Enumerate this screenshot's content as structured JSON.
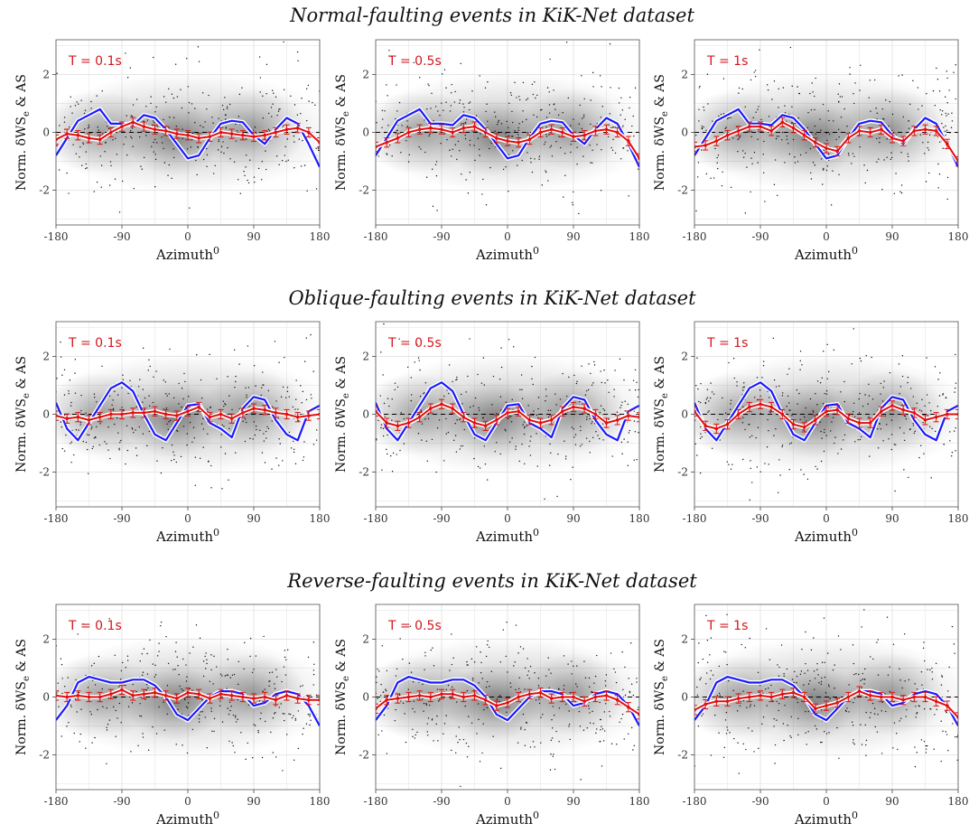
{
  "rows": [
    {
      "title": "Normal-faulting events in KiK-Net dataset"
    },
    {
      "title": "Oblique-faulting events in KiK-Net dataset"
    },
    {
      "title": "Reverse-faulting events in KiK-Net dataset"
    }
  ],
  "axes": {
    "xlabel": "Azimuth",
    "xlabel_sup": "0",
    "ylabel_main": "Norm. δWS",
    "ylabel_sub": "e",
    "ylabel_tail": " & AS",
    "xticks": [
      "-180",
      "-90",
      "0",
      "90",
      "180"
    ],
    "yticks": [
      "2",
      "0",
      "-2"
    ]
  },
  "colors": {
    "model_line": "#1a1aff",
    "binned_mean": "#e01010",
    "points": "#111111",
    "zero_line": "#000000"
  },
  "chart_data": [
    {
      "type": "line",
      "row": "Normal-faulting events in KiK-Net dataset",
      "period_label": "T = 0.1s",
      "xlim": [
        -180,
        180
      ],
      "ylim": [
        -3.2,
        3.2
      ],
      "grid": true,
      "x": [
        -180,
        -165,
        -150,
        -135,
        -120,
        -105,
        -90,
        -75,
        -60,
        -45,
        -30,
        -15,
        0,
        15,
        30,
        45,
        60,
        75,
        90,
        105,
        120,
        135,
        150,
        165,
        180
      ],
      "series": [
        {
          "values": [
            -0.8,
            -0.2,
            0.4,
            0.6,
            0.8,
            0.3,
            0.3,
            0.25,
            0.6,
            0.5,
            0.1,
            -0.4,
            -0.9,
            -0.8,
            -0.2,
            0.3,
            0.4,
            0.35,
            -0.1,
            -0.4,
            0.1,
            0.5,
            0.3,
            -0.4,
            -1.2
          ]
        },
        {
          "values": [
            -0.25,
            -0.05,
            -0.1,
            -0.2,
            -0.25,
            0.0,
            0.2,
            0.35,
            0.2,
            0.1,
            0.05,
            -0.05,
            -0.1,
            -0.2,
            -0.15,
            0.0,
            -0.05,
            -0.1,
            -0.15,
            -0.1,
            0.0,
            0.1,
            0.15,
            0.0,
            -0.35
          ]
        }
      ]
    },
    {
      "type": "line",
      "row": "Normal-faulting events in KiK-Net dataset",
      "period_label": "T = 0.5s",
      "xlim": [
        -180,
        180
      ],
      "ylim": [
        -3.2,
        3.2
      ],
      "grid": true,
      "x": [
        -180,
        -165,
        -150,
        -135,
        -120,
        -105,
        -90,
        -75,
        -60,
        -45,
        -30,
        -15,
        0,
        15,
        30,
        45,
        60,
        75,
        90,
        105,
        120,
        135,
        150,
        165,
        180
      ],
      "series": [
        {
          "values": [
            -0.8,
            -0.2,
            0.4,
            0.6,
            0.8,
            0.3,
            0.3,
            0.25,
            0.6,
            0.5,
            0.1,
            -0.4,
            -0.9,
            -0.8,
            -0.2,
            0.3,
            0.4,
            0.35,
            -0.1,
            -0.4,
            0.1,
            0.5,
            0.3,
            -0.4,
            -1.2
          ]
        },
        {
          "values": [
            -0.5,
            -0.35,
            -0.2,
            0.0,
            0.1,
            0.15,
            0.1,
            0.0,
            0.15,
            0.2,
            0.0,
            -0.2,
            -0.3,
            -0.35,
            -0.25,
            0.0,
            0.1,
            0.0,
            -0.15,
            -0.1,
            0.05,
            0.1,
            0.0,
            -0.3,
            -0.9
          ]
        }
      ]
    },
    {
      "type": "line",
      "row": "Normal-faulting events in KiK-Net dataset",
      "period_label": "T = 1s",
      "xlim": [
        -180,
        180
      ],
      "ylim": [
        -3.2,
        3.2
      ],
      "grid": true,
      "x": [
        -180,
        -165,
        -150,
        -135,
        -120,
        -105,
        -90,
        -75,
        -60,
        -45,
        -30,
        -15,
        0,
        15,
        30,
        45,
        60,
        75,
        90,
        105,
        120,
        135,
        150,
        165,
        180
      ],
      "series": [
        {
          "values": [
            -0.8,
            -0.2,
            0.4,
            0.6,
            0.8,
            0.3,
            0.3,
            0.25,
            0.6,
            0.5,
            0.1,
            -0.4,
            -0.9,
            -0.8,
            -0.2,
            0.3,
            0.4,
            0.35,
            -0.1,
            -0.4,
            0.1,
            0.5,
            0.3,
            -0.4,
            -1.2
          ]
        },
        {
          "values": [
            -0.5,
            -0.45,
            -0.3,
            -0.1,
            0.05,
            0.2,
            0.2,
            0.05,
            0.35,
            0.15,
            -0.1,
            -0.35,
            -0.55,
            -0.65,
            -0.2,
            0.05,
            0.0,
            0.1,
            -0.2,
            -0.3,
            0.05,
            0.1,
            0.05,
            -0.4,
            -1.0
          ]
        }
      ]
    },
    {
      "type": "line",
      "row": "Oblique-faulting events in KiK-Net dataset",
      "period_label": "T = 0.1s",
      "xlim": [
        -180,
        180
      ],
      "ylim": [
        -3.2,
        3.2
      ],
      "grid": true,
      "x": [
        -180,
        -165,
        -150,
        -135,
        -120,
        -105,
        -90,
        -75,
        -60,
        -45,
        -30,
        -15,
        0,
        15,
        30,
        45,
        60,
        75,
        90,
        105,
        120,
        135,
        150,
        165,
        180
      ],
      "series": [
        {
          "values": [
            0.4,
            -0.5,
            -0.9,
            -0.3,
            0.3,
            0.9,
            1.1,
            0.8,
            0.0,
            -0.7,
            -0.9,
            -0.3,
            0.3,
            0.35,
            -0.3,
            -0.5,
            -0.8,
            0.2,
            0.6,
            0.5,
            -0.2,
            -0.7,
            -0.9,
            0.1,
            0.3
          ]
        },
        {
          "values": [
            -0.05,
            -0.15,
            -0.1,
            -0.2,
            -0.1,
            0.0,
            0.0,
            0.05,
            0.05,
            0.1,
            0.0,
            -0.05,
            0.1,
            0.25,
            -0.1,
            0.0,
            -0.15,
            0.05,
            0.2,
            0.15,
            0.05,
            0.0,
            -0.1,
            -0.05,
            0.0
          ]
        }
      ]
    },
    {
      "type": "line",
      "row": "Oblique-faulting events in KiK-Net dataset",
      "period_label": "T = 0.5s",
      "xlim": [
        -180,
        180
      ],
      "ylim": [
        -3.2,
        3.2
      ],
      "grid": true,
      "x": [
        -180,
        -165,
        -150,
        -135,
        -120,
        -105,
        -90,
        -75,
        -60,
        -45,
        -30,
        -15,
        0,
        15,
        30,
        45,
        60,
        75,
        90,
        105,
        120,
        135,
        150,
        165,
        180
      ],
      "series": [
        {
          "values": [
            0.4,
            -0.5,
            -0.9,
            -0.3,
            0.3,
            0.9,
            1.1,
            0.8,
            0.0,
            -0.7,
            -0.9,
            -0.3,
            0.3,
            0.35,
            -0.3,
            -0.5,
            -0.8,
            0.2,
            0.6,
            0.5,
            -0.2,
            -0.7,
            -0.9,
            0.1,
            0.3
          ]
        },
        {
          "values": [
            0.1,
            -0.3,
            -0.4,
            -0.3,
            -0.1,
            0.2,
            0.35,
            0.2,
            -0.1,
            -0.3,
            -0.4,
            -0.2,
            0.05,
            0.1,
            -0.2,
            -0.3,
            -0.2,
            0.1,
            0.25,
            0.2,
            0.0,
            -0.3,
            -0.2,
            -0.05,
            -0.1
          ]
        }
      ]
    },
    {
      "type": "line",
      "row": "Oblique-faulting events in KiK-Net dataset",
      "period_label": "T = 1s",
      "xlim": [
        -180,
        180
      ],
      "ylim": [
        -3.2,
        3.2
      ],
      "grid": true,
      "x": [
        -180,
        -165,
        -150,
        -135,
        -120,
        -105,
        -90,
        -75,
        -60,
        -45,
        -30,
        -15,
        0,
        15,
        30,
        45,
        60,
        75,
        90,
        105,
        120,
        135,
        150,
        165,
        180
      ],
      "series": [
        {
          "values": [
            0.4,
            -0.5,
            -0.9,
            -0.3,
            0.3,
            0.9,
            1.1,
            0.8,
            0.0,
            -0.7,
            -0.9,
            -0.3,
            0.3,
            0.35,
            -0.3,
            -0.5,
            -0.8,
            0.2,
            0.6,
            0.5,
            -0.2,
            -0.7,
            -0.9,
            0.1,
            0.3
          ]
        },
        {
          "values": [
            0.1,
            -0.4,
            -0.5,
            -0.35,
            0.0,
            0.25,
            0.35,
            0.25,
            0.0,
            -0.35,
            -0.45,
            -0.2,
            0.1,
            0.15,
            -0.15,
            -0.3,
            -0.3,
            0.1,
            0.3,
            0.15,
            0.05,
            -0.2,
            -0.1,
            0.0,
            0.0
          ]
        }
      ]
    },
    {
      "type": "line",
      "row": "Reverse-faulting events in KiK-Net dataset",
      "period_label": "T = 0.1s",
      "xlim": [
        -180,
        180
      ],
      "ylim": [
        -3.2,
        3.2
      ],
      "grid": true,
      "x": [
        -180,
        -165,
        -150,
        -135,
        -120,
        -105,
        -90,
        -75,
        -60,
        -45,
        -30,
        -15,
        0,
        15,
        30,
        45,
        60,
        75,
        90,
        105,
        120,
        135,
        150,
        165,
        180
      ],
      "series": [
        {
          "values": [
            -0.8,
            -0.3,
            0.5,
            0.7,
            0.6,
            0.5,
            0.5,
            0.6,
            0.6,
            0.4,
            0.0,
            -0.6,
            -0.8,
            -0.4,
            0.0,
            0.2,
            0.2,
            0.1,
            -0.3,
            -0.2,
            0.1,
            0.2,
            0.1,
            -0.3,
            -1.0
          ]
        },
        {
          "values": [
            0.05,
            0.0,
            0.05,
            0.0,
            0.0,
            0.1,
            0.25,
            0.05,
            0.1,
            0.15,
            0.05,
            -0.05,
            0.15,
            0.1,
            -0.05,
            0.1,
            0.05,
            0.0,
            -0.05,
            0.0,
            -0.1,
            0.05,
            -0.05,
            -0.1,
            -0.1
          ]
        }
      ]
    },
    {
      "type": "line",
      "row": "Reverse-faulting events in KiK-Net dataset",
      "period_label": "T = 0.5s",
      "xlim": [
        -180,
        180
      ],
      "ylim": [
        -3.2,
        3.2
      ],
      "grid": true,
      "x": [
        -180,
        -165,
        -150,
        -135,
        -120,
        -105,
        -90,
        -75,
        -60,
        -45,
        -30,
        -15,
        0,
        15,
        30,
        45,
        60,
        75,
        90,
        105,
        120,
        135,
        150,
        165,
        180
      ],
      "series": [
        {
          "values": [
            -0.8,
            -0.3,
            0.5,
            0.7,
            0.6,
            0.5,
            0.5,
            0.6,
            0.6,
            0.4,
            0.0,
            -0.6,
            -0.8,
            -0.4,
            0.0,
            0.2,
            0.2,
            0.1,
            -0.3,
            -0.2,
            0.1,
            0.2,
            0.1,
            -0.3,
            -1.0
          ]
        },
        {
          "values": [
            -0.4,
            -0.1,
            -0.05,
            0.0,
            0.05,
            0.0,
            0.1,
            0.1,
            0.0,
            0.05,
            -0.1,
            -0.3,
            -0.2,
            0.0,
            0.1,
            0.15,
            -0.05,
            0.0,
            0.0,
            -0.15,
            0.0,
            0.05,
            -0.1,
            -0.35,
            -0.6
          ]
        }
      ]
    },
    {
      "type": "line",
      "row": "Reverse-faulting events in KiK-Net dataset",
      "period_label": "T = 1s",
      "xlim": [
        -180,
        180
      ],
      "ylim": [
        -3.2,
        3.2
      ],
      "grid": true,
      "x": [
        -180,
        -165,
        -150,
        -135,
        -120,
        -105,
        -90,
        -75,
        -60,
        -45,
        -30,
        -15,
        0,
        15,
        30,
        45,
        60,
        75,
        90,
        105,
        120,
        135,
        150,
        165,
        180
      ],
      "series": [
        {
          "values": [
            -0.8,
            -0.3,
            0.5,
            0.7,
            0.6,
            0.5,
            0.5,
            0.6,
            0.6,
            0.4,
            0.0,
            -0.6,
            -0.8,
            -0.4,
            0.0,
            0.2,
            0.2,
            0.1,
            -0.3,
            -0.2,
            0.1,
            0.2,
            0.1,
            -0.3,
            -1.0
          ]
        },
        {
          "values": [
            -0.45,
            -0.25,
            -0.15,
            -0.15,
            -0.05,
            0.0,
            0.05,
            0.0,
            0.1,
            0.15,
            0.0,
            -0.4,
            -0.3,
            -0.2,
            0.0,
            0.2,
            0.05,
            0.0,
            0.0,
            -0.1,
            0.0,
            0.0,
            -0.15,
            -0.3,
            -0.7
          ]
        }
      ]
    }
  ]
}
